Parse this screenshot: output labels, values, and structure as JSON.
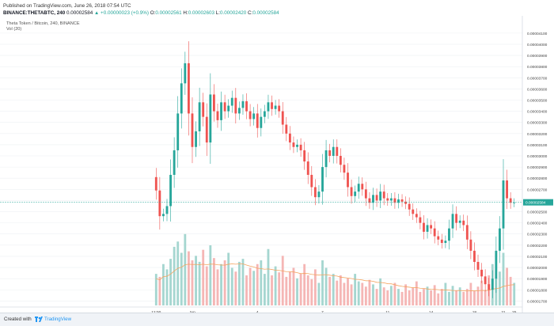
{
  "header": {
    "published": "Published on TradingView.com, June 26, 2018 07:54 UTC",
    "symbol_exchange": "BINANCE:THETABTC, 240",
    "last_value": "0.00002584",
    "change": "▲ +0.00000023 (+0.9%)",
    "o_label": "O:",
    "o_value": "0.00002561",
    "h_label": "H:",
    "h_value": "0.00002603",
    "l_label": "L:",
    "l_value": "0.00002420",
    "c_label": "C:",
    "c_value": "0.00002584"
  },
  "legend": {
    "series": "Theta Token / Bitcoin, 240, BINANCE",
    "volume": "Vol (20)"
  },
  "colors": {
    "up": "#26a69a",
    "down": "#ef5350",
    "vol_up": "#a5d6d0",
    "vol_down": "#f5b6b5",
    "vol_ma": "#f4a460",
    "price_line": "#26a69a",
    "grid": "#eef0f3",
    "axis_text": "#444"
  },
  "footer": {
    "created_with": "Created with",
    "brand": "TradingView",
    "logo_icon": "tradingview-logo-icon"
  },
  "chart_data": {
    "type": "candlestick",
    "title": "Theta Token / Bitcoin, 240, BINANCE",
    "price_axis": {
      "ylim": [
        1.66e-05,
        4.17e-05
      ],
      "ticks": [
        "0.00004100",
        "0.00004000",
        "0.00003900",
        "0.00003800",
        "0.00003700",
        "0.00003600",
        "0.00003500",
        "0.00003400",
        "0.00003300",
        "0.00003200",
        "0.00003100",
        "0.00003000",
        "0.00002900",
        "0.00002800",
        "0.00002700",
        "0.00002600",
        "0.00002500",
        "0.00002400",
        "0.00002300",
        "0.00002200",
        "0.00002100",
        "0.00002000",
        "0.00001900",
        "0.00001800",
        "0.00001700"
      ],
      "current_price": "0.00002584"
    },
    "time_axis": {
      "labels": [
        "12:00",
        "Jun",
        "4",
        "7",
        "11",
        "14",
        "18",
        "21",
        "25"
      ]
    },
    "volume_indicator": "Vol (20)",
    "grid": true,
    "series": [
      {
        "name": "THETABTC",
        "closes": [
          2.69e-05,
          2.46e-05,
          2.48e-05,
          2.55e-05,
          2.83e-05,
          3.05e-05,
          3.38e-05,
          3.65e-05,
          3.83e-05,
          3.38e-05,
          3.08e-05,
          3.22e-05,
          3.48e-05,
          3.35e-05,
          3.12e-05,
          3.55e-05,
          3.4e-05,
          3.32e-05,
          3.48e-05,
          3.4e-05,
          3.45e-05,
          3.52e-05,
          3.38e-05,
          3.43e-05,
          3.49e-05,
          3.4e-05,
          3.33e-05,
          3.38e-05,
          3.25e-05,
          3.35e-05,
          3.4e-05,
          3.48e-05,
          3.42e-05,
          3.45e-05,
          3.4e-05,
          3.28e-05,
          3.2e-05,
          3.12e-05,
          3.08e-05,
          3.1e-05,
          3.05e-05,
          2.95e-05,
          2.83e-05,
          2.72e-05,
          2.63e-05,
          2.68e-05,
          2.9e-05,
          3.05e-05,
          3e-05,
          3.08e-05,
          3e-05,
          2.92e-05,
          2.85e-05,
          2.72e-05,
          2.64e-05,
          2.68e-05,
          2.75e-05,
          2.7e-05,
          2.62e-05,
          2.58e-05,
          2.65e-05,
          2.6e-05,
          2.68e-05,
          2.62e-05,
          2.6e-05,
          2.62e-05,
          2.58e-05,
          2.61e-05,
          2.59e-05,
          2.57e-05,
          2.52e-05,
          2.48e-05,
          2.45e-05,
          2.4e-05,
          2.32e-05,
          2.38e-05,
          2.35e-05,
          2.28e-05,
          2.25e-05,
          2.22e-05,
          2.24e-05,
          2.35e-05,
          2.48e-05,
          2.4e-05,
          2.42e-05,
          2.38e-05,
          2.25e-05,
          2.15e-05,
          2.05e-05,
          1.98e-05,
          1.92e-05,
          1.85e-05,
          1.8e-05,
          1.9e-05,
          2.15e-05,
          2.35e-05,
          2.78e-05,
          2.62e-05,
          2.58e-05,
          2.58e-05
        ],
        "volumes": [
          0.42,
          0.38,
          0.55,
          0.48,
          0.62,
          0.78,
          0.85,
          0.7,
          0.95,
          0.72,
          0.6,
          0.66,
          0.58,
          0.74,
          0.52,
          0.8,
          0.63,
          0.48,
          0.55,
          0.6,
          0.7,
          0.5,
          0.45,
          0.58,
          0.62,
          0.4,
          0.5,
          0.46,
          0.55,
          0.6,
          0.42,
          0.75,
          0.4,
          0.52,
          0.44,
          0.66,
          0.38,
          0.45,
          0.5,
          0.36,
          0.42,
          0.55,
          0.4,
          0.35,
          0.48,
          0.3,
          0.6,
          0.5,
          0.38,
          0.42,
          0.33,
          0.4,
          0.3,
          0.36,
          0.28,
          0.42,
          0.32,
          0.3,
          0.25,
          0.34,
          0.28,
          0.22,
          0.36,
          0.24,
          0.2,
          0.26,
          0.3,
          0.22,
          0.18,
          0.28,
          0.2,
          0.24,
          0.32,
          0.18,
          0.22,
          0.25,
          0.2,
          0.27,
          0.16,
          0.22,
          0.3,
          0.18,
          0.26,
          0.2,
          0.24,
          0.18,
          0.22,
          0.3,
          0.19,
          0.25,
          0.33,
          0.2,
          0.4,
          0.55,
          0.36,
          0.45,
          0.7,
          0.5,
          0.38,
          0.3
        ]
      }
    ]
  }
}
